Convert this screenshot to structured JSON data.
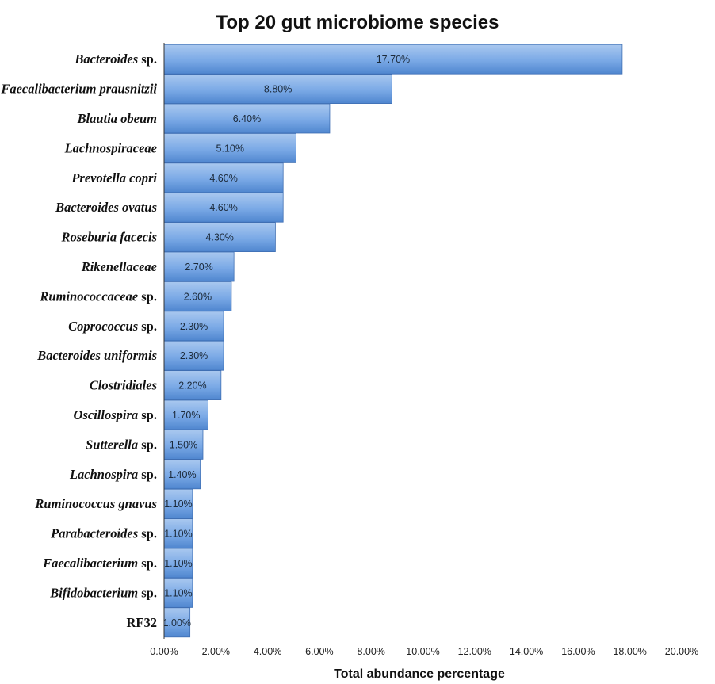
{
  "chart_data": {
    "type": "bar",
    "orientation": "horizontal",
    "title": "Top 20 gut microbiome species",
    "xlabel": "Total abundance percentage",
    "ylabel": "",
    "xlim": [
      0,
      20
    ],
    "x_ticks": [
      "0.00%",
      "2.00%",
      "4.00%",
      "6.00%",
      "8.00%",
      "10.00%",
      "12.00%",
      "14.00%",
      "16.00%",
      "18.00%",
      "20.00%"
    ],
    "categories": [
      {
        "italic": "Bacteroides",
        "plain": " sp."
      },
      {
        "italic": "Faecalibacterium prausnitzii",
        "plain": ""
      },
      {
        "italic": "Blautia obeum",
        "plain": ""
      },
      {
        "italic": "Lachnospiraceae",
        "plain": ""
      },
      {
        "italic": "Prevotella copri",
        "plain": ""
      },
      {
        "italic": "Bacteroides ovatus",
        "plain": ""
      },
      {
        "italic": "Roseburia facecis",
        "plain": ""
      },
      {
        "italic": "Rikenellaceae",
        "plain": ""
      },
      {
        "italic": "Ruminococcaceae",
        "plain": " sp."
      },
      {
        "italic": "Coprococcus",
        "plain": " sp."
      },
      {
        "italic": "Bacteroides uniformis",
        "plain": ""
      },
      {
        "italic": "Clostridiales",
        "plain": ""
      },
      {
        "italic": "Oscillospira",
        "plain": " sp."
      },
      {
        "italic": "Sutterella",
        "plain": " sp."
      },
      {
        "italic": "Lachnospira",
        "plain": " sp."
      },
      {
        "italic": "Ruminococcus gnavus",
        "plain": ""
      },
      {
        "italic": "Parabacteroides",
        "plain": " sp."
      },
      {
        "italic": "Faecalibacterium",
        "plain": " sp."
      },
      {
        "italic": "Bifidobacterium",
        "plain": " sp."
      },
      {
        "italic": "",
        "plain": "RF32"
      }
    ],
    "values": [
      17.7,
      8.8,
      6.4,
      5.1,
      4.6,
      4.6,
      4.3,
      2.7,
      2.6,
      2.3,
      2.3,
      2.2,
      1.7,
      1.5,
      1.4,
      1.1,
      1.1,
      1.1,
      1.1,
      1.0
    ],
    "value_labels": [
      "17.70%",
      "8.80%",
      "6.40%",
      "5.10%",
      "4.60%",
      "4.60%",
      "4.30%",
      "2.70%",
      "2.60%",
      "2.30%",
      "2.30%",
      "2.20%",
      "1.70%",
      "1.50%",
      "1.40%",
      "1.10%",
      "1.10%",
      "1.10%",
      "1.10%",
      "1.00%"
    ],
    "grid": false,
    "legend": "none",
    "colors": {
      "bar_top": "#a9c8ef",
      "bar_mid": "#7aa9e6",
      "bar_bottom": "#4f86cf",
      "bar_edge": "#3f6fb3",
      "axis": "#333333"
    }
  }
}
